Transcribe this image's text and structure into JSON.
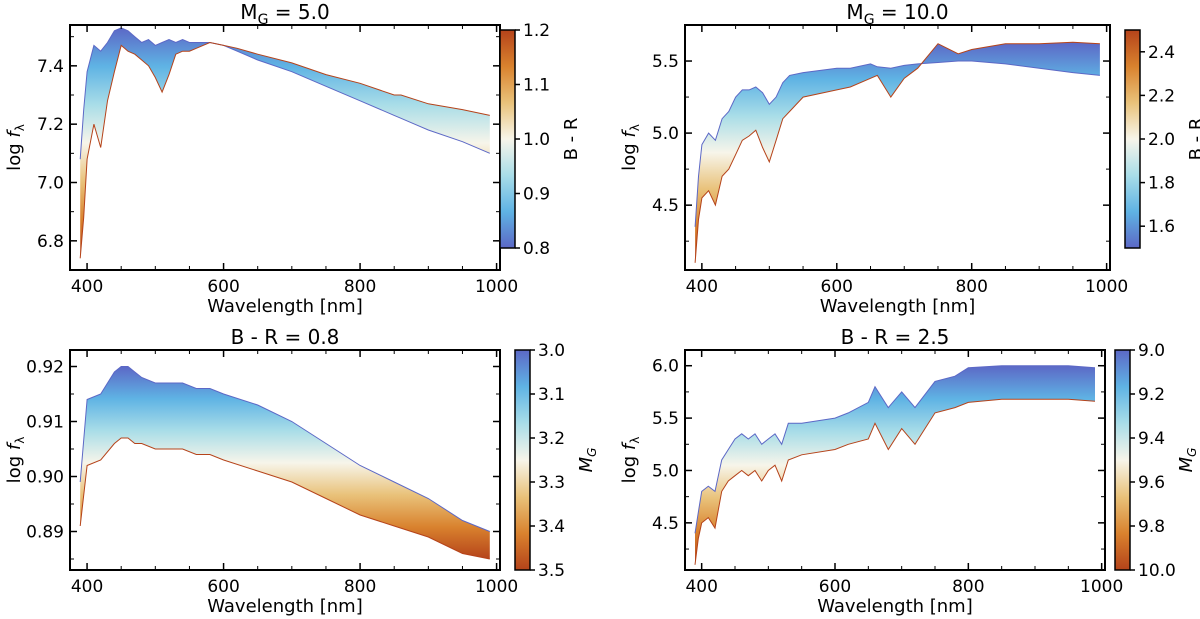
{
  "figure": {
    "description_free": true
  },
  "colormap": {
    "stops": [
      "#b5431a",
      "#d9822e",
      "#e9c27a",
      "#f7f5ea",
      "#a9dde8",
      "#5fb3e4",
      "#5c68c6"
    ]
  },
  "chart_data": [
    {
      "id": "p1",
      "type": "area",
      "title": "M_G = 5.0",
      "title_main": "M",
      "title_sub": "G",
      "title_rest": " = 5.0",
      "xlabel": "Wavelength [nm]",
      "ylabel_main": "log ",
      "ylabel_italic": "f",
      "ylabel_sub": "λ",
      "xlim": [
        375,
        1005
      ],
      "ylim": [
        6.7,
        7.54
      ],
      "xticks": [
        400,
        600,
        800,
        1000
      ],
      "xtick_labels": [
        "400",
        "600",
        "800",
        "1000"
      ],
      "yticks": [
        6.8,
        7.0,
        7.2,
        7.4
      ],
      "ytick_labels": [
        "6.8",
        "7.0",
        "7.2",
        "7.4"
      ],
      "colorbar": {
        "label": "B - R",
        "label_main": "B - R",
        "label_sub": "",
        "range": [
          0.8,
          1.2
        ],
        "ticks": [
          0.8,
          0.9,
          1.0,
          1.1,
          1.2
        ],
        "tick_labels": [
          "0.8",
          "0.9",
          "1.0",
          "1.1",
          "1.2"
        ],
        "reverse": false
      },
      "series": [
        {
          "name": "B - R = 0.8",
          "x": [
            390,
            395,
            400,
            410,
            420,
            430,
            440,
            450,
            460,
            470,
            480,
            490,
            500,
            510,
            520,
            530,
            540,
            550,
            560,
            580,
            600,
            620,
            650,
            700,
            750,
            800,
            850,
            860,
            900,
            950,
            990
          ],
          "values": [
            7.08,
            7.25,
            7.38,
            7.47,
            7.45,
            7.48,
            7.52,
            7.53,
            7.52,
            7.5,
            7.48,
            7.49,
            7.47,
            7.48,
            7.49,
            7.48,
            7.49,
            7.48,
            7.48,
            7.48,
            7.47,
            7.45,
            7.42,
            7.38,
            7.33,
            7.28,
            7.23,
            7.22,
            7.18,
            7.14,
            7.1
          ]
        },
        {
          "name": "B - R = 1.2",
          "x": [
            390,
            395,
            400,
            410,
            420,
            430,
            440,
            450,
            460,
            470,
            480,
            490,
            500,
            510,
            520,
            530,
            540,
            550,
            560,
            580,
            600,
            620,
            650,
            700,
            750,
            800,
            850,
            860,
            900,
            950,
            990
          ],
          "values": [
            6.74,
            6.88,
            7.08,
            7.2,
            7.12,
            7.28,
            7.38,
            7.47,
            7.45,
            7.44,
            7.42,
            7.4,
            7.36,
            7.31,
            7.37,
            7.44,
            7.45,
            7.45,
            7.46,
            7.48,
            7.47,
            7.46,
            7.44,
            7.41,
            7.37,
            7.34,
            7.3,
            7.3,
            7.27,
            7.25,
            7.23
          ]
        }
      ]
    },
    {
      "id": "p2",
      "type": "area",
      "title": "M_G = 10.0",
      "title_main": "M",
      "title_sub": "G",
      "title_rest": " = 10.0",
      "xlabel": "Wavelength [nm]",
      "ylabel_main": "log ",
      "ylabel_italic": "f",
      "ylabel_sub": "λ",
      "xlim": [
        375,
        1005
      ],
      "ylim": [
        4.05,
        5.75
      ],
      "xticks": [
        400,
        600,
        800,
        1000
      ],
      "xtick_labels": [
        "400",
        "600",
        "800",
        "1000"
      ],
      "yticks": [
        4.5,
        5.0,
        5.5
      ],
      "ytick_labels": [
        "4.5",
        "5.0",
        "5.5"
      ],
      "colorbar": {
        "label": "B - R",
        "label_main": "B - R",
        "label_sub": "",
        "range": [
          1.5,
          2.5
        ],
        "ticks": [
          1.6,
          1.8,
          2.0,
          2.2,
          2.4
        ],
        "tick_labels": [
          "1.6",
          "1.8",
          "2.0",
          "2.2",
          "2.4"
        ],
        "reverse": false
      },
      "series": [
        {
          "name": "B - R = 1.5",
          "x": [
            390,
            395,
            400,
            410,
            420,
            430,
            440,
            450,
            460,
            470,
            480,
            490,
            500,
            510,
            520,
            530,
            550,
            600,
            620,
            650,
            660,
            680,
            700,
            720,
            750,
            780,
            800,
            850,
            900,
            950,
            990
          ],
          "values": [
            4.35,
            4.7,
            4.92,
            5.0,
            4.95,
            5.1,
            5.15,
            5.25,
            5.3,
            5.3,
            5.32,
            5.28,
            5.2,
            5.25,
            5.35,
            5.4,
            5.42,
            5.45,
            5.45,
            5.48,
            5.46,
            5.45,
            5.47,
            5.48,
            5.49,
            5.5,
            5.5,
            5.48,
            5.45,
            5.42,
            5.4
          ]
        },
        {
          "name": "B - R = 2.5",
          "x": [
            390,
            395,
            400,
            410,
            420,
            430,
            440,
            450,
            460,
            470,
            480,
            490,
            500,
            510,
            520,
            530,
            550,
            600,
            620,
            650,
            660,
            680,
            700,
            720,
            750,
            780,
            800,
            850,
            900,
            950,
            990
          ],
          "values": [
            4.1,
            4.4,
            4.55,
            4.6,
            4.5,
            4.7,
            4.75,
            4.85,
            4.95,
            4.98,
            5.02,
            4.9,
            4.8,
            4.95,
            5.1,
            5.15,
            5.25,
            5.3,
            5.32,
            5.38,
            5.4,
            5.25,
            5.38,
            5.45,
            5.62,
            5.55,
            5.58,
            5.62,
            5.62,
            5.63,
            5.62
          ]
        }
      ]
    },
    {
      "id": "p3",
      "type": "area",
      "title": "B - R = 0.8",
      "title_main": "B - R = 0.8",
      "title_sub": "",
      "title_rest": "",
      "xlabel": "Wavelength [nm]",
      "ylabel_main": "log ",
      "ylabel_italic": "f",
      "ylabel_sub": "λ",
      "xlim": [
        375,
        1005
      ],
      "ylim": [
        0.883,
        0.923
      ],
      "xticks": [
        400,
        600,
        800,
        1000
      ],
      "xtick_labels": [
        "400",
        "600",
        "800",
        "1000"
      ],
      "yticks": [
        0.89,
        0.9,
        0.91,
        0.92
      ],
      "ytick_labels": [
        "0.89",
        "0.90",
        "0.91",
        "0.92"
      ],
      "colorbar": {
        "label": "M_G",
        "label_main": "M",
        "label_sub": "G",
        "range": [
          3.0,
          3.5
        ],
        "ticks": [
          3.0,
          3.1,
          3.2,
          3.3,
          3.4,
          3.5
        ],
        "tick_labels": [
          "3.0",
          "3.1",
          "3.2",
          "3.3",
          "3.4",
          "3.5"
        ],
        "reverse": true
      },
      "series": [
        {
          "name": "M_G = 3.0",
          "x": [
            390,
            400,
            420,
            440,
            450,
            460,
            470,
            480,
            500,
            520,
            540,
            560,
            580,
            600,
            650,
            700,
            750,
            800,
            850,
            900,
            950,
            990
          ],
          "values": [
            0.899,
            0.914,
            0.915,
            0.919,
            0.92,
            0.92,
            0.919,
            0.918,
            0.917,
            0.917,
            0.917,
            0.916,
            0.916,
            0.915,
            0.913,
            0.91,
            0.906,
            0.902,
            0.899,
            0.896,
            0.892,
            0.89
          ]
        },
        {
          "name": "M_G = 3.5",
          "x": [
            390,
            400,
            420,
            440,
            450,
            460,
            470,
            480,
            500,
            520,
            540,
            560,
            580,
            600,
            650,
            700,
            750,
            800,
            850,
            900,
            950,
            990
          ],
          "values": [
            0.891,
            0.902,
            0.903,
            0.906,
            0.907,
            0.907,
            0.906,
            0.906,
            0.905,
            0.905,
            0.905,
            0.904,
            0.904,
            0.903,
            0.901,
            0.899,
            0.896,
            0.893,
            0.891,
            0.889,
            0.886,
            0.885
          ]
        }
      ]
    },
    {
      "id": "p4",
      "type": "area",
      "title": "B - R = 2.5",
      "title_main": "B - R = 2.5",
      "title_sub": "",
      "title_rest": "",
      "xlabel": "Wavelength [nm]",
      "ylabel_main": "log ",
      "ylabel_italic": "f",
      "ylabel_sub": "λ",
      "xlim": [
        375,
        1005
      ],
      "ylim": [
        4.05,
        6.15
      ],
      "xticks": [
        400,
        600,
        800,
        1000
      ],
      "xtick_labels": [
        "400",
        "600",
        "800",
        "1000"
      ],
      "yticks": [
        4.5,
        5.0,
        5.5,
        6.0
      ],
      "ytick_labels": [
        "4.5",
        "5.0",
        "5.5",
        "6.0"
      ],
      "colorbar": {
        "label": "M_G",
        "label_main": "M",
        "label_sub": "G",
        "range": [
          9.0,
          10.0
        ],
        "ticks": [
          9.0,
          9.2,
          9.4,
          9.6,
          9.8,
          10.0
        ],
        "tick_labels": [
          "9.0",
          "9.2",
          "9.4",
          "9.6",
          "9.8",
          "10.0"
        ],
        "reverse": true
      },
      "series": [
        {
          "name": "M_G = 9.0",
          "x": [
            390,
            395,
            400,
            410,
            420,
            430,
            440,
            450,
            460,
            470,
            480,
            490,
            500,
            510,
            520,
            530,
            550,
            600,
            620,
            650,
            660,
            680,
            700,
            720,
            750,
            780,
            800,
            850,
            900,
            950,
            990
          ],
          "values": [
            4.4,
            4.6,
            4.8,
            4.85,
            4.8,
            5.1,
            5.2,
            5.3,
            5.35,
            5.3,
            5.35,
            5.25,
            5.3,
            5.35,
            5.25,
            5.45,
            5.45,
            5.5,
            5.55,
            5.65,
            5.8,
            5.6,
            5.75,
            5.6,
            5.85,
            5.9,
            5.98,
            6.0,
            6.0,
            6.0,
            5.98
          ]
        },
        {
          "name": "M_G = 10.0",
          "x": [
            390,
            395,
            400,
            410,
            420,
            430,
            440,
            450,
            460,
            470,
            480,
            490,
            500,
            510,
            520,
            530,
            550,
            600,
            620,
            650,
            660,
            680,
            700,
            720,
            750,
            780,
            800,
            850,
            900,
            950,
            990
          ],
          "values": [
            4.1,
            4.35,
            4.5,
            4.55,
            4.45,
            4.8,
            4.9,
            4.95,
            5.0,
            4.95,
            5.0,
            4.9,
            5.0,
            5.05,
            4.9,
            5.1,
            5.15,
            5.2,
            5.25,
            5.3,
            5.45,
            5.2,
            5.4,
            5.25,
            5.55,
            5.6,
            5.65,
            5.68,
            5.68,
            5.68,
            5.66
          ]
        }
      ]
    }
  ]
}
